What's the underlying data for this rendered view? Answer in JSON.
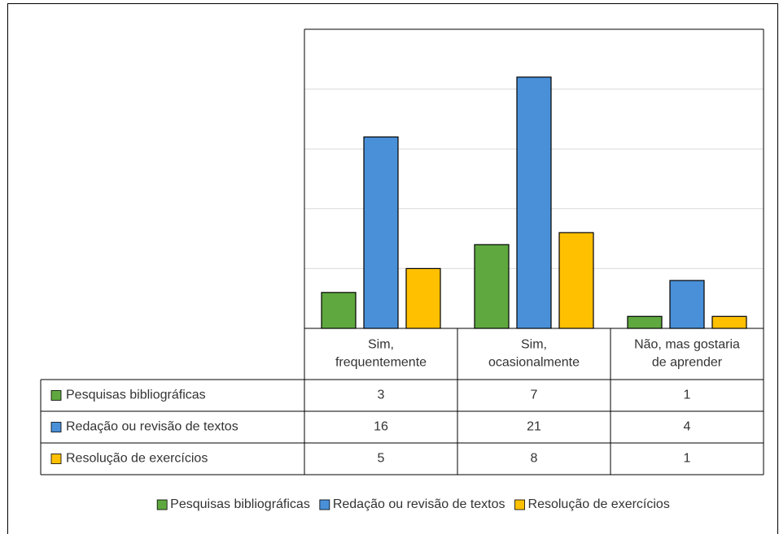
{
  "chart_data": {
    "type": "bar",
    "categories": [
      "Sim,\nfrequentemente",
      "Sim,\nocasionalmente",
      "Não, mas gostaria\nde aprender"
    ],
    "series": [
      {
        "name": "Pesquisas bibliográficas",
        "color": "#5fa83f",
        "values": [
          3,
          7,
          1
        ]
      },
      {
        "name": "Redação ou revisão de textos",
        "color": "#4a90d9",
        "values": [
          16,
          21,
          4
        ]
      },
      {
        "name": "Resolução de exercícios",
        "color": "#ffc000",
        "values": [
          5,
          8,
          1
        ]
      }
    ],
    "ylim": [
      0,
      25
    ],
    "yticks": [
      0,
      5,
      10,
      15,
      20,
      25
    ],
    "grid": true,
    "legend": "bottom",
    "data_table": true
  }
}
